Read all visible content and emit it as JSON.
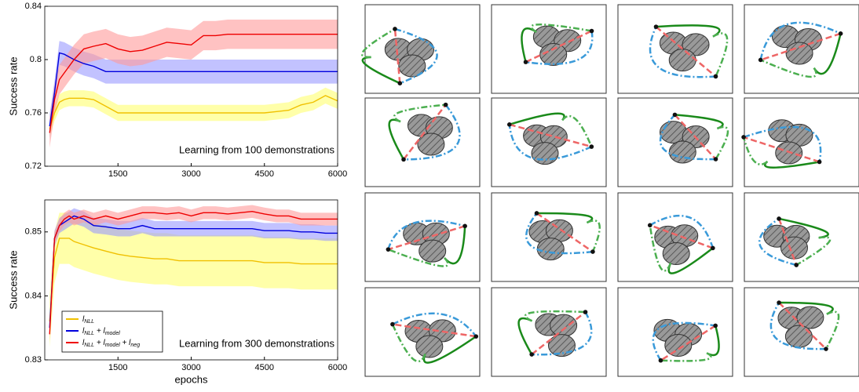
{
  "chart_data": [
    {
      "type": "line",
      "ylabel": "Success rate",
      "annotation": "Learning from 100 demonstrations",
      "xlim": [
        0,
        6000
      ],
      "xticks": [
        1500,
        3000,
        4500,
        6000
      ],
      "ylim": [
        0.72,
        0.84
      ],
      "yticks": [
        0.72,
        0.76,
        0.8,
        0.84
      ],
      "x": [
        100,
        200,
        300,
        400,
        500,
        600,
        800,
        1000,
        1250,
        1500,
        1750,
        2000,
        2250,
        2500,
        2750,
        3000,
        3250,
        3500,
        3750,
        4000,
        4250,
        4500,
        4750,
        5000,
        5250,
        5500,
        5750,
        6000
      ],
      "series": [
        {
          "color": "#f0c000",
          "band_color": "#ffff70",
          "values": [
            0.748,
            0.76,
            0.768,
            0.77,
            0.771,
            0.771,
            0.771,
            0.77,
            0.765,
            0.76,
            0.76,
            0.76,
            0.76,
            0.76,
            0.76,
            0.76,
            0.76,
            0.76,
            0.76,
            0.76,
            0.76,
            0.76,
            0.761,
            0.762,
            0.766,
            0.768,
            0.773,
            0.769
          ],
          "lower": [
            0.742,
            0.754,
            0.762,
            0.764,
            0.765,
            0.765,
            0.765,
            0.764,
            0.759,
            0.754,
            0.754,
            0.754,
            0.754,
            0.754,
            0.754,
            0.754,
            0.754,
            0.754,
            0.754,
            0.754,
            0.754,
            0.754,
            0.755,
            0.756,
            0.76,
            0.762,
            0.767,
            0.763
          ],
          "upper": [
            0.754,
            0.766,
            0.774,
            0.776,
            0.777,
            0.777,
            0.777,
            0.776,
            0.771,
            0.766,
            0.766,
            0.766,
            0.766,
            0.766,
            0.766,
            0.766,
            0.766,
            0.766,
            0.766,
            0.766,
            0.766,
            0.766,
            0.767,
            0.768,
            0.772,
            0.774,
            0.779,
            0.775
          ]
        },
        {
          "color": "#0000dd",
          "band_color": "#9a9aff",
          "values": [
            0.75,
            0.775,
            0.805,
            0.804,
            0.802,
            0.8,
            0.797,
            0.795,
            0.791,
            0.791,
            0.791,
            0.791,
            0.791,
            0.791,
            0.791,
            0.791,
            0.791,
            0.791,
            0.791,
            0.791,
            0.791,
            0.791,
            0.791,
            0.791,
            0.791,
            0.791,
            0.791,
            0.791
          ],
          "lower": [
            0.741,
            0.766,
            0.796,
            0.795,
            0.793,
            0.791,
            0.788,
            0.786,
            0.782,
            0.782,
            0.782,
            0.782,
            0.782,
            0.782,
            0.782,
            0.782,
            0.782,
            0.782,
            0.782,
            0.782,
            0.782,
            0.782,
            0.782,
            0.782,
            0.782,
            0.782,
            0.782,
            0.782
          ],
          "upper": [
            0.759,
            0.784,
            0.814,
            0.813,
            0.811,
            0.809,
            0.806,
            0.804,
            0.8,
            0.8,
            0.8,
            0.8,
            0.8,
            0.8,
            0.8,
            0.8,
            0.8,
            0.8,
            0.8,
            0.8,
            0.8,
            0.8,
            0.8,
            0.8,
            0.8,
            0.8,
            0.8,
            0.8
          ]
        },
        {
          "color": "#ee0000",
          "band_color": "#ff9a9a",
          "values": [
            0.745,
            0.77,
            0.785,
            0.79,
            0.795,
            0.8,
            0.808,
            0.81,
            0.812,
            0.808,
            0.806,
            0.807,
            0.81,
            0.813,
            0.812,
            0.811,
            0.818,
            0.818,
            0.819,
            0.819,
            0.819,
            0.819,
            0.819,
            0.819,
            0.819,
            0.819,
            0.819,
            0.819
          ],
          "lower": [
            0.734,
            0.759,
            0.774,
            0.779,
            0.784,
            0.789,
            0.797,
            0.799,
            0.801,
            0.797,
            0.795,
            0.796,
            0.799,
            0.802,
            0.801,
            0.8,
            0.807,
            0.807,
            0.808,
            0.808,
            0.808,
            0.808,
            0.808,
            0.808,
            0.808,
            0.808,
            0.808,
            0.808
          ],
          "upper": [
            0.756,
            0.781,
            0.796,
            0.801,
            0.806,
            0.811,
            0.819,
            0.821,
            0.823,
            0.819,
            0.817,
            0.818,
            0.821,
            0.824,
            0.823,
            0.822,
            0.829,
            0.829,
            0.83,
            0.83,
            0.83,
            0.83,
            0.83,
            0.83,
            0.83,
            0.83,
            0.83,
            0.83
          ]
        }
      ]
    },
    {
      "type": "line",
      "ylabel": "Success rate",
      "xlabel": "epochs",
      "annotation": "Learning from 300 demonstrations",
      "legend": "lower left",
      "xlim": [
        0,
        6000
      ],
      "xticks": [
        1500,
        3000,
        4500,
        6000
      ],
      "ylim": [
        0.83,
        0.855
      ],
      "yticks": [
        0.83,
        0.84,
        0.85
      ],
      "x": [
        100,
        200,
        300,
        400,
        500,
        600,
        800,
        1000,
        1250,
        1500,
        1750,
        2000,
        2250,
        2500,
        2750,
        3000,
        3250,
        3500,
        3750,
        4000,
        4250,
        4500,
        4750,
        5000,
        5250,
        5500,
        5750,
        6000
      ],
      "series": [
        {
          "name": "l_NLL",
          "color": "#f0c000",
          "band_color": "#ffff70",
          "values": [
            0.836,
            0.846,
            0.849,
            0.849,
            0.849,
            0.8485,
            0.848,
            0.8475,
            0.847,
            0.8465,
            0.8462,
            0.846,
            0.8458,
            0.8458,
            0.8455,
            0.8455,
            0.8455,
            0.8455,
            0.8455,
            0.8455,
            0.8455,
            0.8452,
            0.8452,
            0.8452,
            0.845,
            0.845,
            0.845,
            0.845
          ],
          "lower": [
            0.832,
            0.842,
            0.845,
            0.845,
            0.845,
            0.8445,
            0.844,
            0.8435,
            0.843,
            0.8425,
            0.8422,
            0.842,
            0.8418,
            0.8418,
            0.8415,
            0.8415,
            0.8415,
            0.8415,
            0.8415,
            0.8415,
            0.8415,
            0.8412,
            0.8412,
            0.8412,
            0.841,
            0.841,
            0.841,
            0.841
          ],
          "upper": [
            0.84,
            0.85,
            0.853,
            0.853,
            0.853,
            0.8525,
            0.852,
            0.8515,
            0.851,
            0.8505,
            0.8502,
            0.85,
            0.8498,
            0.8498,
            0.8495,
            0.8495,
            0.8495,
            0.8495,
            0.8495,
            0.8495,
            0.8495,
            0.8492,
            0.8492,
            0.8492,
            0.849,
            0.849,
            0.849,
            0.849
          ]
        },
        {
          "name": "l_NLL + l_model",
          "color": "#0000dd",
          "band_color": "#9a9aff",
          "values": [
            0.835,
            0.849,
            0.851,
            0.8515,
            0.852,
            0.8525,
            0.852,
            0.851,
            0.8508,
            0.8505,
            0.8505,
            0.851,
            0.8505,
            0.8505,
            0.8505,
            0.8505,
            0.8505,
            0.8505,
            0.8505,
            0.8505,
            0.8505,
            0.8502,
            0.8502,
            0.8502,
            0.85,
            0.85,
            0.8498,
            0.8498
          ],
          "lower": [
            0.8338,
            0.8478,
            0.8498,
            0.8503,
            0.8508,
            0.8513,
            0.8508,
            0.8498,
            0.8496,
            0.8493,
            0.8493,
            0.8498,
            0.8493,
            0.8493,
            0.8493,
            0.8493,
            0.8493,
            0.8493,
            0.8493,
            0.8493,
            0.8493,
            0.849,
            0.849,
            0.849,
            0.8488,
            0.8488,
            0.8486,
            0.8486
          ],
          "upper": [
            0.8362,
            0.8502,
            0.8522,
            0.8527,
            0.8532,
            0.8537,
            0.8532,
            0.8522,
            0.852,
            0.8517,
            0.8517,
            0.8522,
            0.8517,
            0.8517,
            0.8517,
            0.8517,
            0.8517,
            0.8517,
            0.8517,
            0.8517,
            0.8517,
            0.8514,
            0.8514,
            0.8514,
            0.8512,
            0.8512,
            0.851,
            0.851
          ]
        },
        {
          "name": "l_NLL + l_model + l_neg",
          "color": "#ee0000",
          "band_color": "#ff9a9a",
          "values": [
            0.834,
            0.849,
            0.851,
            0.852,
            0.8525,
            0.852,
            0.8525,
            0.852,
            0.8525,
            0.852,
            0.8525,
            0.853,
            0.853,
            0.8528,
            0.853,
            0.8525,
            0.853,
            0.853,
            0.8528,
            0.853,
            0.8532,
            0.8528,
            0.8525,
            0.8525,
            0.852,
            0.852,
            0.852,
            0.852
          ],
          "lower": [
            0.833,
            0.848,
            0.85,
            0.851,
            0.8515,
            0.851,
            0.8515,
            0.851,
            0.8515,
            0.851,
            0.8515,
            0.852,
            0.852,
            0.8518,
            0.852,
            0.8515,
            0.852,
            0.852,
            0.8518,
            0.852,
            0.8522,
            0.8518,
            0.8515,
            0.8515,
            0.851,
            0.851,
            0.851,
            0.851
          ],
          "upper": [
            0.835,
            0.85,
            0.852,
            0.853,
            0.8535,
            0.853,
            0.8535,
            0.853,
            0.8535,
            0.853,
            0.8535,
            0.854,
            0.854,
            0.8538,
            0.854,
            0.8535,
            0.854,
            0.854,
            0.8538,
            0.854,
            0.8542,
            0.8538,
            0.8535,
            0.8535,
            0.853,
            0.853,
            0.853,
            0.853
          ]
        }
      ]
    }
  ]
}
